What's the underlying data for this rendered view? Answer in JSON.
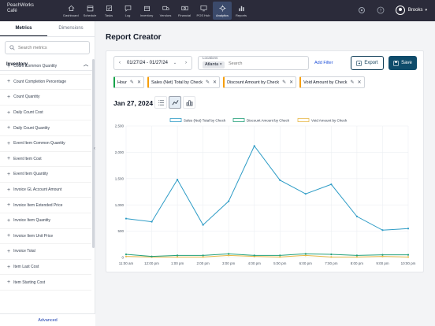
{
  "brand": {
    "line1": "PeachWorks",
    "line2": "Café"
  },
  "nav": [
    {
      "label": "Dashboard",
      "icon": "home-icon"
    },
    {
      "label": "Schedule",
      "icon": "calendar-icon"
    },
    {
      "label": "Tasks",
      "icon": "tasks-icon"
    },
    {
      "label": "Log",
      "icon": "chat-icon"
    },
    {
      "label": "Inventory",
      "icon": "box-icon"
    },
    {
      "label": "Vendors",
      "icon": "truck-icon"
    },
    {
      "label": "Financial",
      "icon": "money-icon"
    },
    {
      "label": "POS Hub",
      "icon": "monitor-icon"
    },
    {
      "label": "Analytics",
      "icon": "analytics-icon",
      "active": true
    },
    {
      "label": "Reports",
      "icon": "reports-icon"
    }
  ],
  "user": {
    "name": "Brooks"
  },
  "sidebar": {
    "tabs": [
      "Metrics",
      "Dimensions"
    ],
    "search_placeholder": "Search metrics",
    "section": "Inventory",
    "items": [
      "Count Common Quantity",
      "Count Completion Percentage",
      "Count Quantity",
      "Daily Count Cost",
      "Daily Count Quantity",
      "Event Item Common Quantity",
      "Event Item Cost",
      "Event Item Quantity",
      "Invoice GL Account Amount",
      "Invoice Item Extended Price",
      "Invoice Item Quantity",
      "Invoice Item Unit Price",
      "Invoice Total",
      "Item Last Cost",
      "Item Starting Cost"
    ],
    "advanced": "Advanced"
  },
  "page": {
    "title": "Report Creator"
  },
  "filters": {
    "date_range": "01/27/24 - 01/27/24",
    "locations_label": "Locations",
    "location_chip": "Atlanta",
    "location_placeholder": "Search",
    "add_filter": "Add Filter",
    "export": "Export",
    "save": "Save"
  },
  "pills": [
    {
      "label": "Hour",
      "color": "#16a34a"
    },
    {
      "label": "Sales (Net) Total by Check",
      "color": "#f59e0b"
    },
    {
      "label": "Discount Amount by Check",
      "color": "#f59e0b"
    },
    {
      "label": "Void Amount by Check",
      "color": "#f59e0b"
    }
  ],
  "date_title": "Jan 27, 2024",
  "chart_data": {
    "type": "line",
    "x": [
      "11:00 am",
      "12:00 pm",
      "1:00 pm",
      "2:00 pm",
      "3:00 pm",
      "4:00 pm",
      "5:00 pm",
      "6:00 pm",
      "7:00 pm",
      "8:00 pm",
      "9:00 pm",
      "10:00 pm"
    ],
    "ylim": [
      0,
      2500
    ],
    "yticks": [
      "0",
      "500",
      "1,000",
      "1,500",
      "2,000",
      "2,500"
    ],
    "legend_position": "top",
    "series": [
      {
        "name": "Sales (Net) Total by Check",
        "color": "#2e9cc6",
        "values": [
          740,
          680,
          1480,
          620,
          1070,
          2120,
          1470,
          1210,
          1390,
          780,
          520,
          550
        ]
      },
      {
        "name": "Discount Amount by Check",
        "color": "#22a07a",
        "values": [
          60,
          20,
          40,
          40,
          70,
          40,
          40,
          70,
          60,
          40,
          50,
          50
        ]
      },
      {
        "name": "Void Amount by Check",
        "color": "#e8b94a",
        "values": [
          20,
          10,
          10,
          10,
          40,
          20,
          10,
          40,
          10,
          10,
          20,
          10
        ]
      }
    ]
  }
}
